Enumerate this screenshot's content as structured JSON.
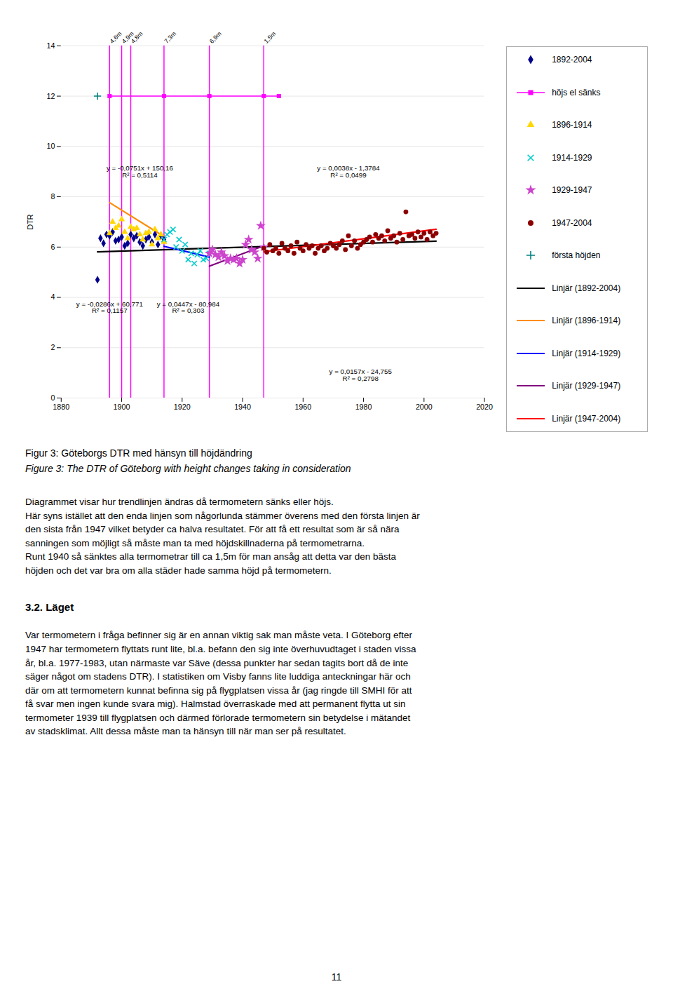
{
  "chart_data": {
    "type": "scatter",
    "ylabel": "DTR",
    "xlim": [
      1880,
      2020
    ],
    "ylim": [
      0,
      14
    ],
    "xticks": [
      1880,
      1900,
      1920,
      1940,
      1960,
      1980,
      2000,
      2020
    ],
    "yticks": [
      0,
      2,
      4,
      6,
      8,
      10,
      12,
      14
    ],
    "grid": "y",
    "series": [
      {
        "name": "1892-2004",
        "type": "scatter",
        "marker": "diamond",
        "color": "#00008b",
        "x": [
          1892,
          1893,
          1894,
          1895,
          1896,
          1897,
          1898,
          1899,
          1900,
          1901,
          1902,
          1903,
          1904,
          1905,
          1906,
          1907,
          1908,
          1909,
          1910,
          1911,
          1912,
          1913,
          1914
        ],
        "values": [
          4.7,
          6.35,
          6.15,
          6.5,
          6.45,
          6.6,
          6.25,
          6.3,
          6.4,
          6.05,
          6.15,
          6.5,
          6.35,
          6.45,
          6.2,
          6.05,
          6.3,
          6.4,
          6.2,
          6.5,
          6.1,
          6.45,
          6.3
        ]
      },
      {
        "name": "höjs el sänks",
        "type": "line",
        "marker": "square",
        "color": "#ff00ff",
        "x": [
          1896,
          1914,
          1929,
          1947,
          1952
        ],
        "values": [
          12.0,
          12.0,
          12.0,
          12.0,
          12.0
        ]
      },
      {
        "name": "1896-1914",
        "type": "scatter",
        "marker": "triangle",
        "color": "#ffd700",
        "x": [
          1896,
          1897,
          1898,
          1899,
          1900,
          1901,
          1902,
          1903,
          1904,
          1905,
          1906,
          1907,
          1908,
          1909,
          1910,
          1911,
          1912,
          1913,
          1914
        ],
        "values": [
          6.55,
          7.0,
          6.75,
          6.85,
          7.1,
          6.6,
          6.35,
          6.8,
          6.7,
          6.75,
          6.5,
          6.3,
          6.55,
          6.6,
          6.1,
          6.7,
          6.35,
          6.5,
          6.2
        ]
      },
      {
        "name": "1914-1929",
        "type": "scatter",
        "marker": "x",
        "color": "#00cccc",
        "x": [
          1914,
          1915,
          1916,
          1917,
          1918,
          1919,
          1920,
          1921,
          1922,
          1923,
          1924,
          1925,
          1926,
          1927,
          1928,
          1929
        ],
        "values": [
          6.3,
          6.5,
          6.6,
          6.7,
          6.0,
          6.3,
          5.85,
          6.1,
          5.5,
          5.75,
          5.35,
          5.7,
          5.85,
          5.5,
          5.55,
          5.75
        ]
      },
      {
        "name": "1929-1947",
        "type": "scatter",
        "marker": "star",
        "color": "#cc44cc",
        "x": [
          1929,
          1930,
          1931,
          1932,
          1933,
          1934,
          1935,
          1936,
          1937,
          1938,
          1939,
          1940,
          1941,
          1942,
          1943,
          1944,
          1945,
          1946,
          1947
        ],
        "values": [
          5.75,
          5.9,
          5.7,
          5.6,
          5.8,
          5.65,
          5.45,
          5.55,
          5.5,
          5.55,
          5.35,
          5.5,
          6.1,
          6.3,
          5.9,
          5.8,
          5.55,
          6.85,
          6.0
        ]
      },
      {
        "name": "1947-2004",
        "type": "scatter",
        "marker": "circle",
        "color": "#8b0000",
        "x": [
          1947,
          1948,
          1949,
          1950,
          1951,
          1952,
          1953,
          1954,
          1955,
          1956,
          1957,
          1958,
          1959,
          1960,
          1961,
          1962,
          1963,
          1964,
          1965,
          1966,
          1967,
          1968,
          1969,
          1970,
          1971,
          1972,
          1973,
          1974,
          1975,
          1976,
          1977,
          1978,
          1979,
          1980,
          1981,
          1982,
          1983,
          1984,
          1985,
          1986,
          1987,
          1988,
          1989,
          1990,
          1991,
          1992,
          1993,
          1994,
          1995,
          1996,
          1997,
          1998,
          1999,
          2000,
          2001,
          2002,
          2003,
          2004
        ],
        "values": [
          5.95,
          5.8,
          6.1,
          5.85,
          5.95,
          5.75,
          6.15,
          5.95,
          5.85,
          6.05,
          5.75,
          6.2,
          5.95,
          5.85,
          6.1,
          5.95,
          6.05,
          5.75,
          5.95,
          6.05,
          5.85,
          5.95,
          6.15,
          6.05,
          5.95,
          6.1,
          6.25,
          5.9,
          6.45,
          6.05,
          6.25,
          5.95,
          6.1,
          6.2,
          6.3,
          6.4,
          6.2,
          6.5,
          6.35,
          6.45,
          6.25,
          6.65,
          6.35,
          6.45,
          6.2,
          6.55,
          6.3,
          7.4,
          6.45,
          6.5,
          6.35,
          6.6,
          6.4,
          6.55,
          6.3,
          6.6,
          6.45,
          6.55
        ]
      },
      {
        "name": "första höjden",
        "type": "scatter",
        "marker": "plus",
        "color": "#008080",
        "x": [
          1892
        ],
        "values": [
          12.0
        ]
      },
      {
        "name": "Linjär (1892-2004)",
        "type": "line",
        "color": "#000000",
        "x": [
          1892,
          2004
        ],
        "values": [
          5.8112,
          6.2368
        ]
      },
      {
        "name": "Linjär (1896-1914)",
        "type": "line",
        "color": "#ff8c00",
        "x": [
          1896,
          1914
        ],
        "values": [
          7.7704,
          6.4186
        ]
      },
      {
        "name": "Linjär (1914-1929)",
        "type": "line",
        "color": "#0000ff",
        "x": [
          1914,
          1929
        ],
        "values": [
          6.0306,
          5.6016
        ]
      },
      {
        "name": "Linjär (1929-1947)",
        "type": "line",
        "color": "#800080",
        "x": [
          1929,
          1947
        ],
        "values": [
          5.2423,
          6.0469
        ]
      },
      {
        "name": "Linjär (1947-2004)",
        "type": "line",
        "color": "#ff0000",
        "x": [
          1947,
          2004
        ],
        "values": [
          5.8129,
          6.7078
        ]
      }
    ],
    "annotations": [
      {
        "type": "vline",
        "x": 1896,
        "text": "4,6m",
        "color": "#ff00ff"
      },
      {
        "type": "vline",
        "x": 1900,
        "text": "4,9m",
        "color": "#ff00ff"
      },
      {
        "type": "vline",
        "x": 1903,
        "text": "4,8m",
        "color": "#ff00ff"
      },
      {
        "type": "vline",
        "x": 1914,
        "text": "7,3m",
        "color": "#ff00ff"
      },
      {
        "type": "vline",
        "x": 1929,
        "text": "6,9m",
        "color": "#ff00ff"
      },
      {
        "type": "vline",
        "x": 1947,
        "text": "1,5m",
        "color": "#ff00ff"
      },
      {
        "type": "box",
        "x": 1906,
        "y": 9.0,
        "text": "y = -0,0751x + 150,16\nR² = 0,5114",
        "color": "#3333aa"
      },
      {
        "type": "box",
        "x": 1975,
        "y": 9.0,
        "text": "y = 0,0038x - 1,3784\nR² = 0,0499",
        "color": "#3333aa"
      },
      {
        "type": "box",
        "x": 1896,
        "y": 3.6,
        "text": "y = -0,0286x + 60,771\nR² = 0,1157",
        "color": "#3333aa"
      },
      {
        "type": "box",
        "x": 1922,
        "y": 3.6,
        "text": "y = 0,0447x - 80,984\nR² = 0,303",
        "color": "#3333aa"
      },
      {
        "type": "box",
        "x": 1979,
        "y": 0.9,
        "text": "y = 0,0157x - 24,755\nR² = 0,2798",
        "color": "#aa3333"
      }
    ],
    "legend": "right",
    "caption": [
      "Figur 3: Göteborgs DTR med hänsyn till höjdändring",
      "Figure 3: The DTR of Göteborg with height changes taking in consideration"
    ],
    "body": "Diagrammet visar hur trendlinjen ändras då termometern sänks eller höjs.\nHär syns istället att den enda linjen som någorlunda stämmer överens med den första linjen är\nden sista från 1947 vilket betyder ca halva resultatet. För att få ett resultat som är så nära\nsanningen som möjligt så måste man ta med höjdskillnaderna på termometrarna.\nRunt 1940 så sänktes alla termometrar till ca 1,5m för man ansåg att detta var den bästa\nhöjden och det var bra om alla städer hade samma höjd på termometern.",
    "section_title": "3.2. Läget",
    "section_body": "Var termometern i fråga befinner sig är en annan viktig sak man måste veta. I Göteborg efter\n1947 har termometern flyttats runt lite, bl.a. befann den sig inte överhuvudtaget i staden vissa\når, bl.a. 1977-1983, utan närmaste var Säve (dessa punkter har sedan tagits bort då de inte\nsäger något om stadens DTR). I statistiken om Visby fanns lite luddiga anteckningar här och\ndär om att termometern kunnat befinna sig på flygplatsen vissa år (jag ringde till SMHI för att\nfå svar men ingen kunde svara mig). Halmstad överraskade med att permanent flytta ut sin\ntermometer 1939 till flygplatsen och därmed förlorade termometern sin betydelse i mätandet\nav stadsklimat. Allt dessa måste man ta hänsyn till när man ser på resultatet.",
    "page_number": "11"
  }
}
